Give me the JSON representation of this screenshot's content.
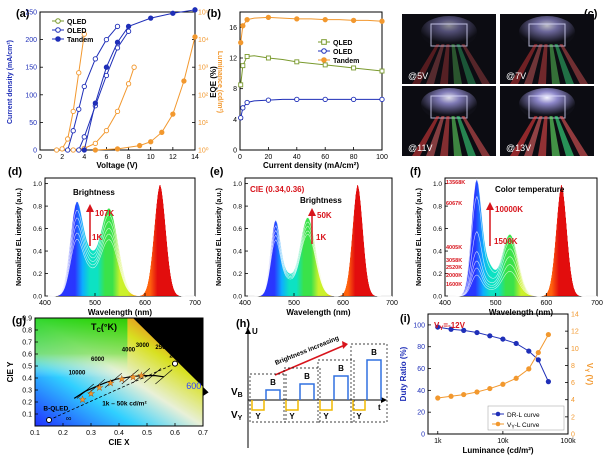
{
  "panels": {
    "a": {
      "label": "(a)",
      "xlabel": "Voltage (V)",
      "ylabel_left": "Current density (mA/cm²)",
      "ylabel_right": "Luminance (cd/m²)",
      "x_ticks": [
        "0",
        "2",
        "4",
        "6",
        "8",
        "10",
        "12",
        "14"
      ],
      "y_ticks": [
        "0",
        "50",
        "100",
        "150",
        "200",
        "250"
      ],
      "yr_ticks": [
        "10⁰",
        "10¹",
        "10²",
        "10³",
        "10⁴",
        "10⁵"
      ],
      "legend": [
        "QLED",
        "OLED",
        "Tandem"
      ]
    },
    "b": {
      "label": "(b)",
      "xlabel": "Current density (mA/cm²)",
      "ylabel": "EQE (%)",
      "x_ticks": [
        "0",
        "20",
        "40",
        "60",
        "80",
        "100"
      ],
      "y_ticks": [
        "0",
        "4",
        "8",
        "12",
        "16"
      ],
      "legend": [
        "QLED",
        "OLED",
        "Tandem"
      ]
    },
    "c": {
      "label": "(c)",
      "photos": [
        "@5V",
        "@7V",
        "@11V",
        "@13V"
      ]
    },
    "d": {
      "label": "(d)",
      "xlabel": "Wavelength (nm)",
      "ylabel": "Normalized EL intensity (a.u.)",
      "x_ticks": [
        "400",
        "500",
        "600",
        "700"
      ],
      "y_ticks": [
        "0.0",
        "0.2",
        "0.4",
        "0.6",
        "0.8",
        "1.0"
      ],
      "annot": "Brightness",
      "hi": "107K",
      "lo": "1K"
    },
    "e": {
      "label": "(e)",
      "xlabel": "Wavelength (nm)",
      "ylabel": "Normalized EL intensity (a.u.)",
      "x_ticks": [
        "400",
        "500",
        "600",
        "700"
      ],
      "y_ticks": [
        "0.0",
        "0.2",
        "0.4",
        "0.6",
        "0.8",
        "1.0"
      ],
      "cie": "CIE (0.34,0.36)",
      "annot": "Brightness",
      "hi": "50K",
      "lo": "1K"
    },
    "f": {
      "label": "(f)",
      "xlabel": "Wavelength (nm)",
      "ylabel": "Normalized EL intensity (a.u.)",
      "x_ticks": [
        "400",
        "500",
        "600",
        "700"
      ],
      "y_ticks": [
        "0.0",
        "0.2",
        "0.4",
        "0.6",
        "0.8",
        "1.0"
      ],
      "annot": "Color temperature",
      "hi": "10000K",
      "lo": "1500K",
      "temps": [
        "13568K",
        "6067K",
        "4005K",
        "3058K",
        "2520K",
        "2000K",
        "1600K"
      ]
    },
    "g": {
      "label": "(g)",
      "xlabel": "CIE X",
      "ylabel": "CIE Y",
      "x_ticks": [
        "0.1",
        "0.2",
        "0.3",
        "0.4",
        "0.5",
        "0.6",
        "0.7"
      ],
      "y_ticks": [
        "0.1",
        "0.2",
        "0.3",
        "0.4",
        "0.5",
        "0.6",
        "0.7",
        "0.8",
        "0.9"
      ],
      "tc": "T",
      "tc_sub": "C",
      "tc_unit": "(°K)",
      "temps": [
        "10000",
        "6000",
        "4000",
        "3000",
        "2500",
        "2000",
        "1500"
      ],
      "b_qled": "B-QLED",
      "y_qled": "Y-OLED",
      "lum": "1k – 50k cd/m²",
      "inf": "∞",
      "num600": "600"
    },
    "h": {
      "label": "(h)",
      "axis_u": "U",
      "axis_t": "t",
      "vb": "V",
      "vb_sub": "B",
      "vy": "V",
      "vy_sub": "Y",
      "arrow": "Brightness increasing",
      "B": "B",
      "Y": "Y"
    },
    "i": {
      "label": "(i)",
      "xlabel": "Luminance (cd/m²)",
      "ylabel_left": "Duty Ratio (%)",
      "ylabel_right": "V",
      "ylabel_right_sub": "Y",
      "ylabel_right_unit": " (V)",
      "vy_label": "V",
      "vy_sub": "Y",
      "vy_val": "=-12V",
      "x_ticks": [
        "1k",
        "10k",
        "100k"
      ],
      "y_ticks": [
        "0",
        "20",
        "40",
        "60",
        "80",
        "100"
      ],
      "yr_ticks": [
        "0",
        "2",
        "4",
        "6",
        "8",
        "10",
        "12",
        "14"
      ],
      "legend": [
        "DR-L curve",
        "V-L Curve"
      ],
      "legend_vl_pre": "V",
      "legend_vl_sub": "Y",
      "legend_vl_post": "-L Curve"
    }
  },
  "colors": {
    "qled": "#7a9a2e",
    "oled": "#1f2fb8",
    "tandem": "#f2982e",
    "red_annot": "#d8141c"
  },
  "chart_data": [
    {
      "type": "line",
      "title": "",
      "xlabel": "Voltage (V)",
      "ylabel": "Current density (mA/cm²)",
      "xlim": [
        0,
        14
      ],
      "ylim": [
        0,
        250
      ],
      "series": [
        {
          "name": "QLED",
          "axis": "left",
          "x": [
            1.5,
            2.0,
            2.5,
            3.0,
            3.5,
            4.0
          ],
          "y": [
            0,
            2,
            20,
            70,
            140,
            210
          ]
        },
        {
          "name": "OLED",
          "axis": "left",
          "x": [
            3.0,
            4.0,
            5.0,
            6.0,
            7.0,
            8.0,
            8.5
          ],
          "y": [
            0,
            3,
            12,
            35,
            70,
            120,
            150
          ]
        },
        {
          "name": "Tandem",
          "axis": "left",
          "x": [
            5.0,
            7.0,
            9.0,
            10.0,
            11.0,
            12.0,
            13.0,
            14.0
          ],
          "y": [
            0,
            2,
            8,
            15,
            32,
            65,
            125,
            205
          ]
        },
        {
          "name": "QLED",
          "axis": "right",
          "x": [
            2.5,
            3.0,
            3.5,
            4.0,
            5.0,
            6.0,
            7.0
          ],
          "y": [
            1,
            5,
            30,
            200,
            2000,
            10000,
            30000
          ]
        },
        {
          "name": "OLED",
          "axis": "right",
          "x": [
            3.5,
            4.0,
            5.0,
            6.0,
            7.0,
            8.0
          ],
          "y": [
            1,
            3,
            40,
            500,
            5000,
            20000
          ]
        },
        {
          "name": "Tandem",
          "axis": "right",
          "x": [
            4.0,
            5.0,
            6.0,
            7.0,
            8.0,
            10.0,
            12.0,
            14.0
          ],
          "y": [
            1,
            50,
            1000,
            8000,
            30000,
            60000,
            90000,
            120000
          ]
        }
      ]
    },
    {
      "type": "line",
      "title": "",
      "xlabel": "Current density (mA/cm²)",
      "ylabel": "EQE (%)",
      "xlim": [
        0,
        100
      ],
      "ylim": [
        0,
        18
      ],
      "series": [
        {
          "name": "QLED",
          "x": [
            0.5,
            2,
            5,
            10,
            20,
            30,
            40,
            50,
            60,
            70,
            80,
            90,
            100
          ],
          "y": [
            8.5,
            11,
            12.2,
            12.3,
            12.0,
            11.8,
            11.5,
            11.3,
            11.1,
            10.9,
            10.7,
            10.5,
            10.3
          ]
        },
        {
          "name": "OLED",
          "x": [
            0.5,
            2,
            5,
            10,
            20,
            30,
            40,
            50,
            60,
            70,
            80,
            90,
            100
          ],
          "y": [
            4.2,
            5.5,
            6.2,
            6.4,
            6.5,
            6.6,
            6.6,
            6.6,
            6.6,
            6.6,
            6.6,
            6.6,
            6.6
          ]
        },
        {
          "name": "Tandem",
          "x": [
            0.5,
            2,
            5,
            10,
            20,
            30,
            40,
            50,
            60,
            70,
            80,
            90,
            100
          ],
          "y": [
            14,
            16.2,
            17.0,
            17.2,
            17.3,
            17.2,
            17.1,
            17.1,
            17.0,
            17.0,
            16.9,
            16.9,
            16.8
          ]
        }
      ]
    }
  ]
}
